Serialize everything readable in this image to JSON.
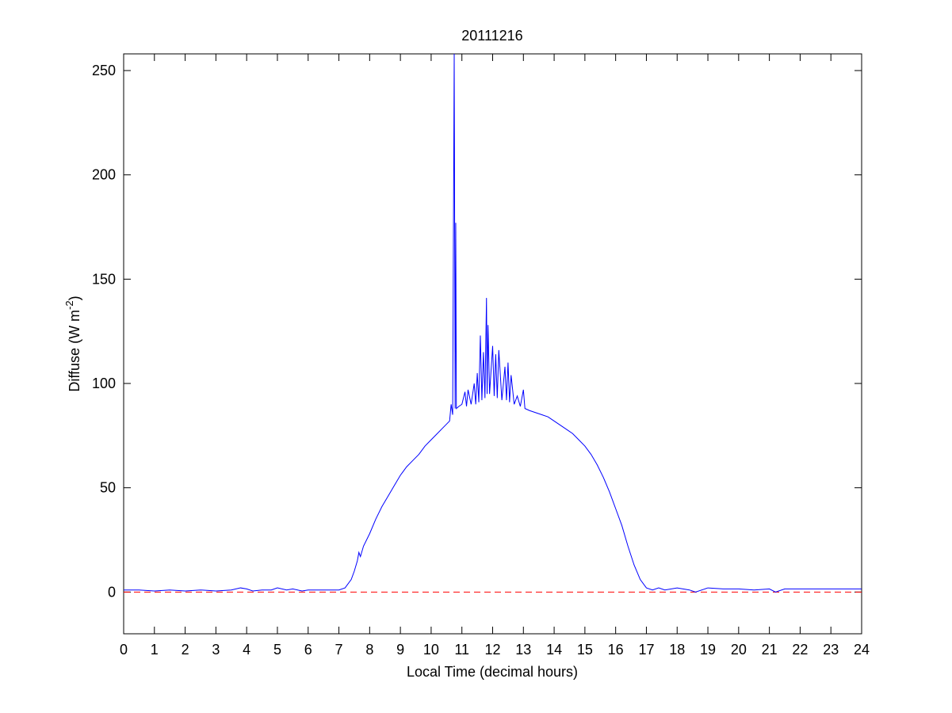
{
  "chart_data": {
    "type": "line",
    "title": "20111216",
    "x_label": "Local Time (decimal hours)",
    "y_label": [
      "Diffuse (W m",
      "-2",
      ")"
    ],
    "x": [
      0,
      0.5,
      1,
      1.5,
      2,
      2.5,
      3,
      3.5,
      3.8,
      4,
      4.2,
      4.5,
      4.8,
      5,
      5.3,
      5.5,
      5.8,
      6,
      6.5,
      7,
      7.2,
      7.4,
      7.5,
      7.6,
      7.65,
      7.7,
      7.8,
      8,
      8.2,
      8.4,
      8.6,
      8.8,
      9,
      9.2,
      9.4,
      9.6,
      9.8,
      10,
      10.2,
      10.4,
      10.6,
      10.65,
      10.7,
      10.75,
      10.78,
      10.8,
      10.82,
      10.9,
      11,
      11.1,
      11.15,
      11.2,
      11.3,
      11.4,
      11.45,
      11.5,
      11.55,
      11.6,
      11.65,
      11.7,
      11.75,
      11.8,
      11.82,
      11.85,
      11.9,
      12,
      12.05,
      12.1,
      12.15,
      12.2,
      12.3,
      12.4,
      12.45,
      12.5,
      12.55,
      12.6,
      12.7,
      12.8,
      12.9,
      13,
      13.05,
      13.2,
      13.4,
      13.6,
      13.8,
      14,
      14.2,
      14.4,
      14.6,
      14.8,
      15,
      15.2,
      15.4,
      15.6,
      15.8,
      16,
      16.2,
      16.4,
      16.6,
      16.8,
      17,
      17.2,
      17.4,
      17.6,
      18,
      18.4,
      18.6,
      19,
      19.5,
      20,
      20.5,
      21,
      21.2,
      21.5,
      22,
      22.5,
      23,
      23.5,
      24
    ],
    "series": [
      {
        "color": "#0000ff",
        "values": [
          1,
          1,
          0.5,
          1,
          0.5,
          1,
          0.5,
          1,
          2,
          1.5,
          0.5,
          1,
          1,
          2,
          1,
          1.5,
          0.5,
          1,
          1,
          1,
          2,
          6,
          10,
          15,
          19,
          17,
          22,
          28,
          35,
          41,
          46,
          51,
          56,
          60,
          63,
          66,
          70,
          73,
          76,
          79,
          82,
          90,
          85,
          258,
          88,
          177,
          88,
          89,
          90,
          96,
          89,
          97,
          90,
          100,
          90,
          105,
          91,
          123,
          92,
          115,
          93,
          141,
          95,
          128,
          95,
          118,
          94,
          114,
          93,
          116,
          92,
          108,
          92,
          110,
          91,
          104,
          90,
          94,
          89,
          97,
          88,
          87,
          86,
          85,
          84,
          82,
          80,
          78,
          76,
          73,
          70,
          66,
          61,
          55,
          48,
          40,
          32,
          22,
          13,
          6,
          2,
          1,
          2,
          1,
          2,
          1,
          0,
          2,
          1.5,
          1.5,
          1,
          1.5,
          0,
          1.5,
          1.5,
          1.5,
          1.5,
          1.5,
          1.5
        ]
      }
    ],
    "reference_line": {
      "value": 0,
      "color": "#ff0000"
    },
    "xlim": [
      0,
      24
    ],
    "ylim": [
      -20,
      258
    ],
    "xticks": [
      0,
      1,
      2,
      3,
      4,
      5,
      6,
      7,
      8,
      9,
      10,
      11,
      12,
      13,
      14,
      15,
      16,
      17,
      18,
      19,
      20,
      21,
      22,
      23,
      24
    ],
    "yticks": [
      0,
      50,
      100,
      150,
      200,
      250
    ]
  }
}
